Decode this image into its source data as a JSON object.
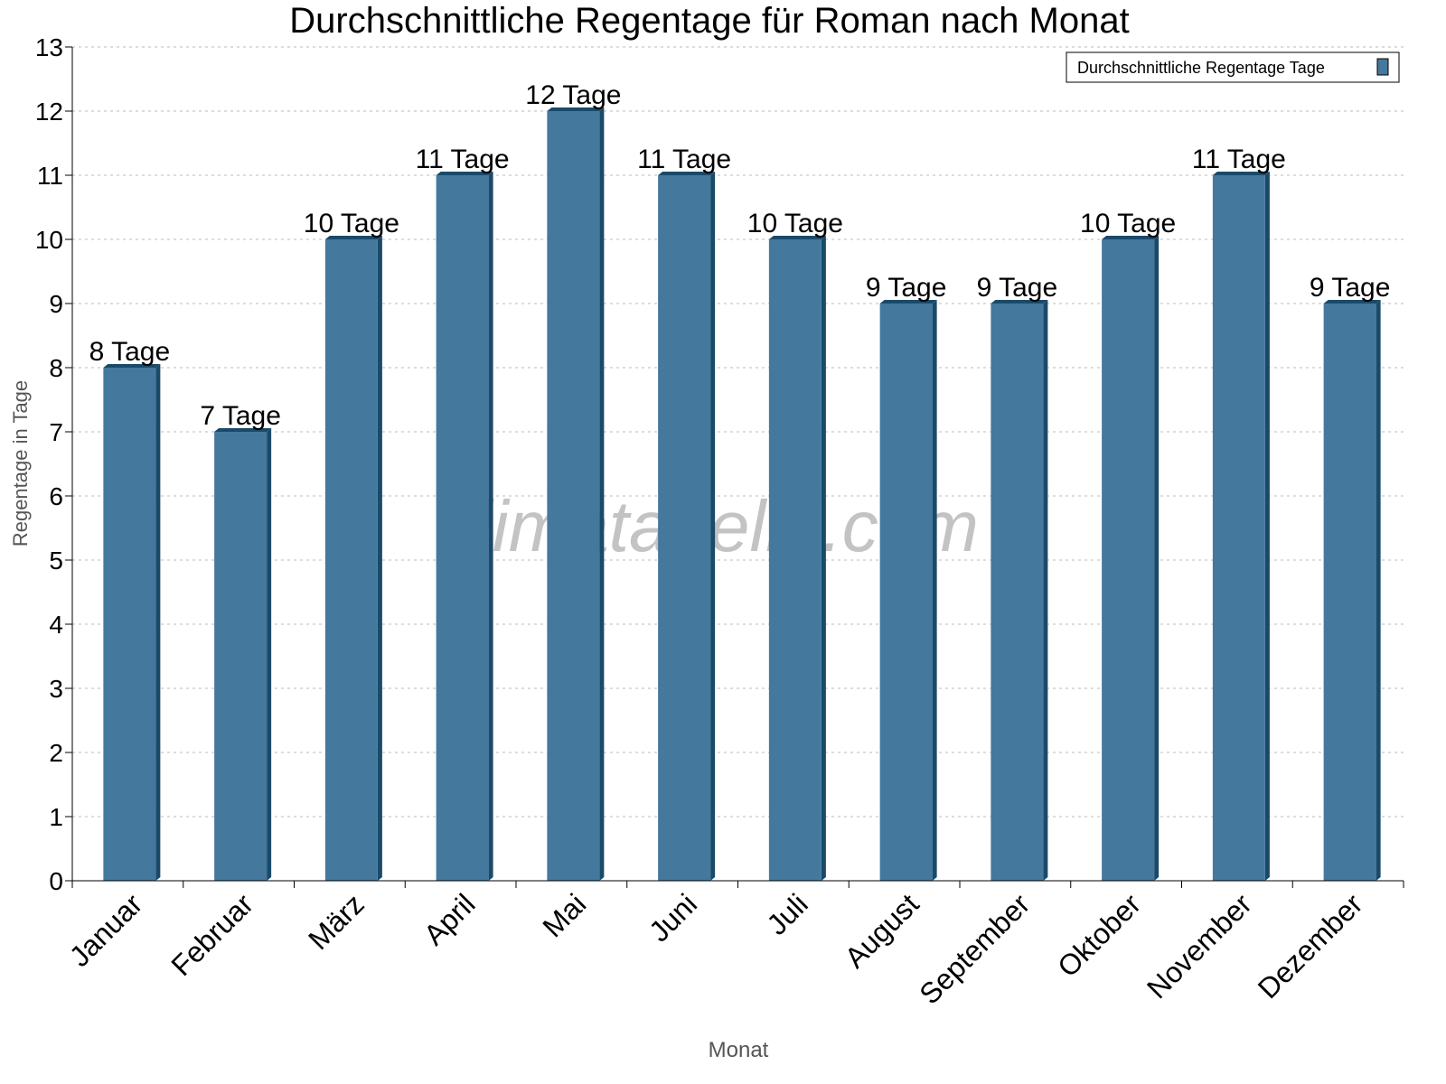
{
  "chart_data": {
    "type": "bar",
    "title": "Durchschnittliche Regentage für Roman nach Monat",
    "xlabel": "Monat",
    "ylabel": "Regentage in Tage",
    "ylim": [
      0,
      13
    ],
    "yticks": [
      0,
      1,
      2,
      3,
      4,
      5,
      6,
      7,
      8,
      9,
      10,
      11,
      12,
      13
    ],
    "grid": true,
    "legend_position": "top-right",
    "categories": [
      "Januar",
      "Februar",
      "März",
      "April",
      "Mai",
      "Juni",
      "Juli",
      "August",
      "September",
      "Oktober",
      "November",
      "Dezember"
    ],
    "series": [
      {
        "name": "Durchschnittliche Regentage Tage",
        "values": [
          8,
          7,
          10,
          11,
          12,
          11,
          10,
          9,
          9,
          10,
          11,
          9
        ],
        "data_labels": [
          "8 Tage",
          "7 Tage",
          "10 Tage",
          "11 Tage",
          "12 Tage",
          "11 Tage",
          "10 Tage",
          "9 Tage",
          "9 Tage",
          "10 Tage",
          "11 Tage",
          "9 Tage"
        ],
        "color": "#44789c",
        "edge_color": "#1a4a6a"
      }
    ],
    "watermark": "klimatabelle.com"
  }
}
